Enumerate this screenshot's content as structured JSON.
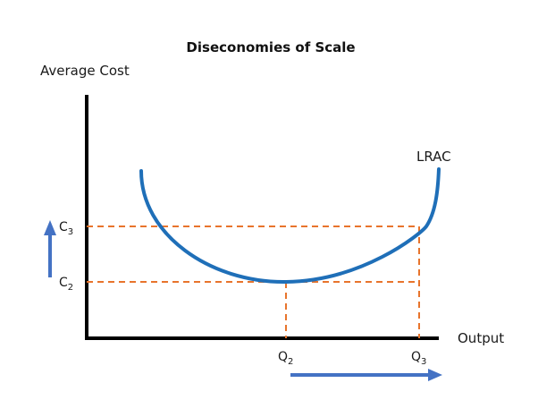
{
  "title": "Diseconomies of Scale",
  "y_axis_label": "Average Cost",
  "x_axis_label": "Output",
  "curve_label": "LRAC",
  "y_ticks": [
    {
      "base": "C",
      "sub": "3"
    },
    {
      "base": "C",
      "sub": "2"
    }
  ],
  "x_ticks": [
    {
      "base": "Q",
      "sub": "2"
    },
    {
      "base": "Q",
      "sub": "3"
    }
  ],
  "colors": {
    "axis": "#000000",
    "curve": "#1f6fb8",
    "guide": "#e8742c",
    "arrow": "#4472c4",
    "text": "#1a1a1a"
  },
  "arrows": {
    "cost_arrow": "up",
    "output_arrow": "right"
  }
}
